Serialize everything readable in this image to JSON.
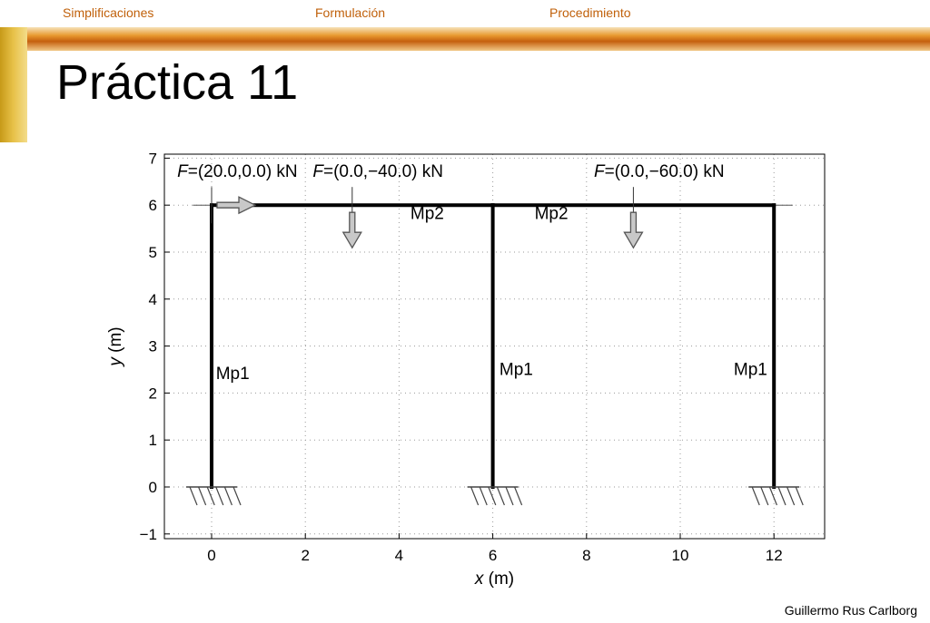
{
  "nav": {
    "items": [
      {
        "label": "Simplificaciones"
      },
      {
        "label": "Formulación"
      },
      {
        "label": "Procedimiento"
      }
    ]
  },
  "title": "Práctica 11",
  "footer": "Guillermo Rus Carlborg",
  "colors": {
    "nav_text": "#c0600a",
    "band": "#e08a28",
    "side_bar": "#d8b030"
  },
  "diagram": {
    "x_axis": {
      "label_var": "x",
      "label_unit": " (m)",
      "range": [
        -1,
        13
      ],
      "ticks": [
        "0",
        "2",
        "4",
        "6",
        "8",
        "10",
        "12"
      ],
      "tick_values": [
        0,
        2,
        4,
        6,
        8,
        10,
        12
      ]
    },
    "y_axis": {
      "label_var": "y",
      "label_unit": " (m)",
      "range": [
        -1.2,
        7.1
      ],
      "ticks": [
        "−1",
        "0",
        "1",
        "2",
        "3",
        "4",
        "5",
        "6",
        "7"
      ],
      "tick_values": [
        -1,
        0,
        1,
        2,
        3,
        4,
        5,
        6,
        7
      ]
    },
    "grid": "dotted",
    "members": [
      {
        "name": "Mp1",
        "from": [
          0,
          0
        ],
        "to": [
          0,
          6
        ],
        "label_at": [
          0.45,
          2.3
        ]
      },
      {
        "name": "Mp1",
        "from": [
          6,
          0
        ],
        "to": [
          6,
          6
        ],
        "label_at": [
          6.5,
          2.38
        ]
      },
      {
        "name": "Mp1",
        "from": [
          12,
          0
        ],
        "to": [
          12,
          6
        ],
        "label_at": [
          11.5,
          2.38
        ]
      },
      {
        "name": "Mp2",
        "from": [
          0,
          6
        ],
        "to": [
          6,
          6
        ],
        "label_at": [
          4.6,
          5.7
        ]
      },
      {
        "name": "Mp2",
        "from": [
          6,
          6
        ],
        "to": [
          12,
          6
        ],
        "label_at": [
          7.25,
          5.7
        ]
      }
    ],
    "supports": [
      {
        "at": [
          0,
          0
        ],
        "type": "fixed"
      },
      {
        "at": [
          6,
          0
        ],
        "type": "fixed"
      },
      {
        "at": [
          12,
          0
        ],
        "type": "fixed"
      }
    ],
    "forces": [
      {
        "at": [
          0,
          6
        ],
        "dir": "right",
        "var": "F",
        "text": "=(20.0,0.0) kN",
        "label_at": [
          0.55,
          6.6
        ]
      },
      {
        "at": [
          3,
          6
        ],
        "dir": "down",
        "var": "F",
        "text": "=(0.0,−40.0) kN",
        "label_at": [
          3.55,
          6.6
        ]
      },
      {
        "at": [
          9,
          6
        ],
        "dir": "down",
        "var": "F",
        "text": "=(0.0,−60.0) kN",
        "label_at": [
          9.55,
          6.6
        ]
      }
    ]
  }
}
